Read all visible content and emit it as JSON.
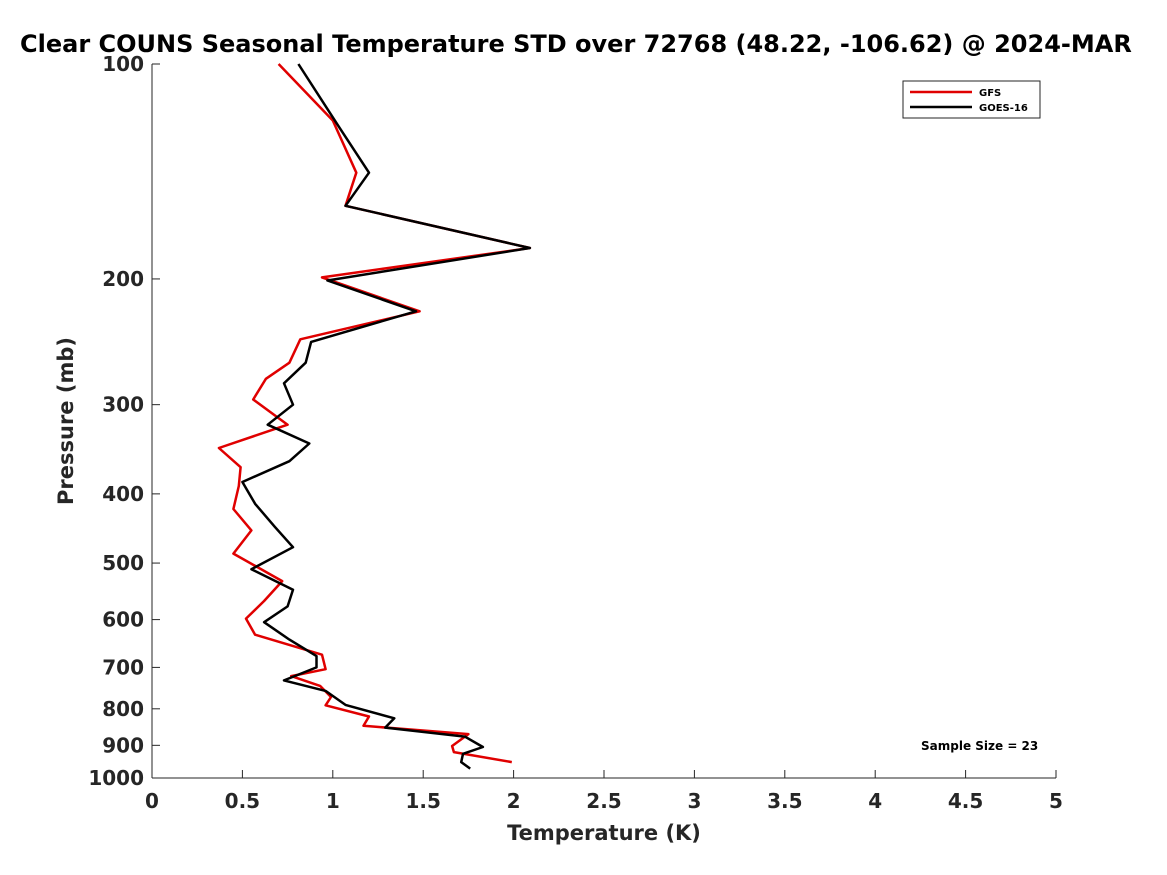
{
  "chart_data": {
    "type": "line",
    "title": "Clear COUNS Seasonal Temperature STD over 72768 (48.22, -106.62) @ 2024-MAR",
    "xlabel": "Temperature (K)",
    "ylabel": "Pressure (mb)",
    "xlim": [
      0,
      5
    ],
    "ylim": [
      100,
      1000
    ],
    "y_scale": "log",
    "y_reversed": true,
    "x_ticks": [
      "0",
      "0.5",
      "1",
      "1.5",
      "2",
      "2.5",
      "3",
      "3.5",
      "4",
      "4.5",
      "5"
    ],
    "y_ticks": [
      "100",
      "200",
      "300",
      "400",
      "500",
      "600",
      "700",
      "800",
      "900",
      "1000"
    ],
    "legend": {
      "position": "top-right",
      "entries": [
        "GFS",
        "GOES-16"
      ]
    },
    "annotation": "Sample Size = 23",
    "series": [
      {
        "name": "GFS",
        "color": "#e00000",
        "x": [
          0.7,
          1.0,
          1.13,
          1.07,
          2.09,
          0.94,
          1.48,
          0.82,
          0.76,
          0.63,
          0.56,
          0.75,
          0.37,
          0.49,
          0.48,
          0.45,
          0.55,
          0.45,
          0.72,
          0.62,
          0.52,
          0.57,
          0.94,
          0.96,
          0.77,
          0.93,
          0.99,
          0.96,
          1.2,
          1.17,
          1.75,
          1.66,
          1.67,
          1.99
        ],
        "y": [
          100,
          120,
          142,
          158,
          181,
          199,
          222,
          243,
          262,
          276,
          295,
          320,
          345,
          367,
          390,
          420,
          450,
          485,
          530,
          565,
          598,
          630,
          672,
          704,
          720,
          743,
          770,
          791,
          820,
          845,
          868,
          902,
          920,
          950
        ]
      },
      {
        "name": "GOES-16",
        "color": "#000000",
        "x": [
          0.81,
          1.03,
          1.2,
          1.07,
          2.09,
          0.97,
          1.46,
          0.88,
          0.85,
          0.73,
          0.78,
          0.64,
          0.87,
          0.76,
          0.5,
          0.57,
          0.68,
          0.78,
          0.55,
          0.78,
          0.75,
          0.62,
          0.76,
          0.91,
          0.91,
          0.73,
          0.96,
          1.07,
          1.34,
          1.29,
          1.73,
          1.83,
          1.72,
          1.71,
          1.76
        ],
        "y": [
          100,
          122,
          142,
          158,
          181,
          201,
          222,
          245,
          262,
          280,
          300,
          320,
          340,
          360,
          385,
          413,
          445,
          475,
          510,
          545,
          575,
          605,
          640,
          675,
          700,
          730,
          755,
          790,
          825,
          850,
          875,
          905,
          925,
          950,
          970
        ]
      }
    ]
  }
}
